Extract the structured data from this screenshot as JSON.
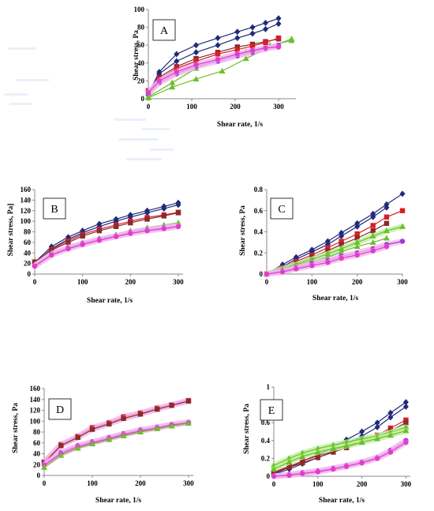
{
  "figure": {
    "colors": {
      "navy": "#1f2a7a",
      "red": "#d4202b",
      "brown": "#8c2a2a",
      "green": "#6cbf2a",
      "purple": "#9b3bd6",
      "magenta": "#e23cc9",
      "glow_pink": "#f3b6ef",
      "glow_blue": "#b8c6ff",
      "glow_green": "#bff0a0",
      "axis": "#8a8a8a"
    }
  },
  "chart_data": [
    {
      "id": "A",
      "type": "line",
      "label": "A",
      "xlabel": "Shear rate, 1/s",
      "ylabel": "Shear stress, Pa",
      "xlim": [
        0,
        340
      ],
      "ylim": [
        0,
        100
      ],
      "xticks": [
        0,
        100,
        200,
        300
      ],
      "yticks": [
        0,
        20,
        40,
        60,
        80,
        100
      ],
      "series": [
        {
          "color": "navy",
          "marker": "diamond",
          "x": [
            0,
            25,
            65,
            110,
            160,
            205,
            240,
            270,
            300
          ],
          "y": [
            5,
            30,
            50,
            60,
            68,
            75,
            80,
            85,
            90
          ]
        },
        {
          "color": "navy",
          "marker": "diamond",
          "x": [
            0,
            25,
            65,
            110,
            160,
            205,
            240,
            270,
            300
          ],
          "y": [
            4,
            28,
            42,
            52,
            60,
            68,
            73,
            78,
            84
          ]
        },
        {
          "color": "brown",
          "marker": "square",
          "x": [
            0,
            25,
            65,
            110,
            160,
            205,
            240,
            270,
            300
          ],
          "y": [
            8,
            24,
            36,
            45,
            52,
            58,
            61,
            64,
            67
          ]
        },
        {
          "color": "red",
          "marker": "square",
          "x": [
            0,
            25,
            65,
            110,
            160,
            205,
            240,
            270,
            300
          ],
          "y": [
            9,
            22,
            34,
            42,
            50,
            55,
            59,
            63,
            68
          ]
        },
        {
          "color": "green",
          "marker": "triangle",
          "x": [
            0,
            55,
            110,
            170,
            225,
            280,
            330
          ],
          "y": [
            1,
            13,
            22,
            31,
            45,
            58,
            67
          ]
        },
        {
          "color": "green",
          "marker": "triangle",
          "x": [
            0,
            55,
            110,
            170,
            225,
            280,
            330
          ],
          "y": [
            2,
            18,
            34,
            45,
            53,
            60,
            65
          ]
        },
        {
          "color": "purple",
          "marker": "circle",
          "x": [
            0,
            25,
            65,
            110,
            160,
            205,
            240,
            270,
            300
          ],
          "y": [
            6,
            18,
            28,
            36,
            42,
            48,
            52,
            56,
            60
          ],
          "glow": "glow_pink"
        },
        {
          "color": "magenta",
          "marker": "circle",
          "x": [
            0,
            25,
            65,
            110,
            160,
            205,
            240,
            270,
            300
          ],
          "y": [
            7,
            20,
            30,
            38,
            44,
            50,
            54,
            57,
            58
          ],
          "glow": "glow_pink"
        }
      ]
    },
    {
      "id": "B",
      "type": "line",
      "label": "B",
      "xlabel": "Shear rate, 1/s",
      "ylabel": "Shear stress, Pa]",
      "xlim": [
        0,
        310
      ],
      "ylim": [
        0,
        160
      ],
      "xticks": [
        0,
        100,
        200,
        300
      ],
      "yticks": [
        0,
        20,
        40,
        60,
        80,
        100,
        120,
        140,
        160
      ],
      "series": [
        {
          "color": "navy",
          "marker": "diamond",
          "x": [
            0,
            35,
            70,
            100,
            135,
            170,
            200,
            235,
            270,
            300
          ],
          "y": [
            22,
            52,
            70,
            82,
            95,
            104,
            112,
            120,
            128,
            135
          ]
        },
        {
          "color": "navy",
          "marker": "diamond",
          "x": [
            0,
            35,
            70,
            100,
            135,
            170,
            200,
            235,
            270,
            300
          ],
          "y": [
            20,
            48,
            66,
            78,
            90,
            100,
            108,
            116,
            124,
            131
          ]
        },
        {
          "color": "red",
          "marker": "square",
          "x": [
            0,
            35,
            70,
            100,
            135,
            170,
            200,
            235,
            270,
            300
          ],
          "y": [
            21,
            47,
            63,
            75,
            85,
            93,
            100,
            107,
            112,
            117
          ]
        },
        {
          "color": "brown",
          "marker": "square",
          "x": [
            0,
            35,
            70,
            100,
            135,
            170,
            200,
            235,
            270,
            300
          ],
          "y": [
            23,
            45,
            60,
            72,
            82,
            90,
            97,
            104,
            110,
            116
          ]
        },
        {
          "color": "green",
          "marker": "triangle",
          "x": [
            0,
            35,
            70,
            100,
            135,
            170,
            200,
            235,
            270,
            300
          ],
          "y": [
            18,
            40,
            52,
            60,
            68,
            75,
            82,
            88,
            93,
            97
          ]
        },
        {
          "color": "purple",
          "marker": "circle",
          "x": [
            0,
            35,
            70,
            100,
            135,
            170,
            200,
            235,
            270,
            300
          ],
          "y": [
            16,
            38,
            50,
            58,
            66,
            72,
            79,
            84,
            88,
            91
          ],
          "glow": "glow_pink"
        },
        {
          "color": "magenta",
          "marker": "circle",
          "x": [
            0,
            35,
            70,
            100,
            135,
            170,
            200,
            235,
            270,
            300
          ],
          "y": [
            15,
            36,
            48,
            56,
            64,
            71,
            77,
            82,
            86,
            90
          ],
          "glow": "glow_pink"
        }
      ]
    },
    {
      "id": "C",
      "type": "line",
      "label": "C",
      "xlabel": "Shear rate, 1/s",
      "ylabel": "Shear  stress, Pa",
      "xlim": [
        0,
        300
      ],
      "ylim": [
        0,
        0.8
      ],
      "xticks": [
        0,
        100,
        200,
        300
      ],
      "yticks": [
        0,
        0.2,
        0.4,
        0.6,
        0.8
      ],
      "series": [
        {
          "color": "navy",
          "marker": "diamond",
          "x": [
            0,
            35,
            65,
            100,
            135,
            165,
            200,
            235,
            265,
            300
          ],
          "y": [
            0.0,
            0.09,
            0.16,
            0.23,
            0.31,
            0.39,
            0.48,
            0.57,
            0.66,
            0.76
          ]
        },
        {
          "color": "navy",
          "marker": "diamond",
          "x": [
            0,
            35,
            65,
            100,
            135,
            165,
            200,
            235,
            265
          ],
          "y": [
            0.0,
            0.07,
            0.14,
            0.21,
            0.28,
            0.36,
            0.45,
            0.54,
            0.63
          ]
        },
        {
          "color": "red",
          "marker": "square",
          "x": [
            0,
            35,
            65,
            100,
            135,
            165,
            200,
            235,
            265,
            300
          ],
          "y": [
            0.0,
            0.06,
            0.12,
            0.18,
            0.25,
            0.31,
            0.38,
            0.46,
            0.54,
            0.6
          ]
        },
        {
          "color": "brown",
          "marker": "square",
          "x": [
            0,
            35,
            65,
            100,
            135,
            165,
            200,
            235,
            265
          ],
          "y": [
            0.0,
            0.05,
            0.1,
            0.16,
            0.22,
            0.28,
            0.34,
            0.41,
            0.48
          ]
        },
        {
          "color": "green",
          "marker": "triangle",
          "x": [
            0,
            35,
            65,
            100,
            135,
            165,
            200,
            235,
            265,
            300
          ],
          "y": [
            0.0,
            0.05,
            0.09,
            0.14,
            0.19,
            0.24,
            0.3,
            0.36,
            0.41,
            0.45
          ],
          "glow": "glow_green"
        },
        {
          "color": "green",
          "marker": "triangle",
          "x": [
            0,
            35,
            65,
            100,
            135,
            165,
            200,
            235,
            265
          ],
          "y": [
            0.0,
            0.04,
            0.08,
            0.12,
            0.16,
            0.21,
            0.26,
            0.3,
            0.34
          ]
        },
        {
          "color": "purple",
          "marker": "circle",
          "x": [
            0,
            35,
            65,
            100,
            135,
            165,
            200,
            235,
            265,
            300
          ],
          "y": [
            0.0,
            0.03,
            0.06,
            0.1,
            0.13,
            0.17,
            0.2,
            0.24,
            0.28,
            0.31
          ],
          "glow": "glow_pink"
        },
        {
          "color": "magenta",
          "marker": "circle",
          "x": [
            0,
            35,
            65,
            100,
            135,
            165,
            200,
            235,
            265
          ],
          "y": [
            0.0,
            0.02,
            0.05,
            0.08,
            0.11,
            0.15,
            0.18,
            0.22,
            0.26
          ],
          "glow": "glow_pink"
        }
      ]
    },
    {
      "id": "D",
      "type": "line",
      "label": "D",
      "xlabel": "Shear rate, 1/s",
      "ylabel": "Shear  stress, Pa",
      "xlim": [
        0,
        310
      ],
      "ylim": [
        0,
        160
      ],
      "xticks": [
        0,
        100,
        200,
        300
      ],
      "yticks": [
        0,
        20,
        40,
        60,
        80,
        100,
        120,
        140,
        160
      ],
      "series": [
        {
          "color": "red",
          "marker": "square",
          "x": [
            0,
            35,
            70,
            100,
            135,
            165,
            200,
            235,
            265,
            300
          ],
          "y": [
            25,
            57,
            72,
            88,
            97,
            108,
            115,
            124,
            130,
            138
          ],
          "glow": "glow_pink"
        },
        {
          "color": "brown",
          "marker": "square",
          "x": [
            0,
            35,
            70,
            100,
            135,
            165,
            200,
            235,
            265,
            300
          ],
          "y": [
            23,
            55,
            70,
            85,
            95,
            105,
            113,
            122,
            129,
            137
          ],
          "glow": "glow_pink"
        },
        {
          "color": "purple",
          "marker": "circle",
          "x": [
            0,
            35,
            70,
            100,
            135,
            165,
            200,
            235,
            265,
            300
          ],
          "y": [
            20,
            42,
            55,
            62,
            70,
            77,
            84,
            89,
            94,
            98
          ],
          "glow": "glow_pink"
        },
        {
          "color": "magenta",
          "marker": "circle",
          "x": [
            0,
            35,
            70,
            100,
            135,
            165,
            200,
            235,
            265,
            300
          ],
          "y": [
            19,
            40,
            53,
            60,
            68,
            75,
            82,
            87,
            93,
            97
          ],
          "glow": "glow_pink"
        },
        {
          "color": "green",
          "marker": "triangle",
          "x": [
            0,
            35,
            70,
            100,
            135,
            165,
            200,
            235,
            265,
            300
          ],
          "y": [
            15,
            37,
            50,
            58,
            66,
            73,
            80,
            86,
            91,
            96
          ]
        }
      ]
    },
    {
      "id": "E",
      "type": "line",
      "label": "E",
      "xlabel": "Shear rate, 1/s",
      "ylabel": "Shear  stress, Pa",
      "xlim": [
        0,
        310
      ],
      "ylim": [
        0,
        1.0
      ],
      "xticks": [
        0,
        100,
        200,
        300
      ],
      "yticks": [
        0,
        0.2,
        0.4,
        0.6,
        0.8,
        1.0
      ],
      "series": [
        {
          "color": "navy",
          "marker": "diamond",
          "x": [
            0,
            35,
            65,
            100,
            135,
            165,
            200,
            235,
            265,
            300
          ],
          "y": [
            0.03,
            0.1,
            0.17,
            0.24,
            0.32,
            0.41,
            0.5,
            0.6,
            0.71,
            0.83
          ]
        },
        {
          "color": "navy",
          "marker": "diamond",
          "x": [
            0,
            35,
            65,
            100,
            135,
            165,
            200,
            235,
            265,
            300
          ],
          "y": [
            0.02,
            0.08,
            0.14,
            0.21,
            0.28,
            0.36,
            0.45,
            0.55,
            0.66,
            0.78
          ]
        },
        {
          "color": "red",
          "marker": "square",
          "x": [
            0,
            35,
            65,
            100,
            135,
            165,
            200,
            235,
            265,
            300
          ],
          "y": [
            0.05,
            0.11,
            0.17,
            0.23,
            0.29,
            0.34,
            0.4,
            0.46,
            0.54,
            0.63
          ]
        },
        {
          "color": "brown",
          "marker": "square",
          "x": [
            0,
            35,
            65,
            100,
            135,
            165,
            200,
            235,
            265,
            300
          ],
          "y": [
            0.04,
            0.1,
            0.15,
            0.21,
            0.27,
            0.32,
            0.38,
            0.44,
            0.51,
            0.6
          ]
        },
        {
          "color": "green",
          "marker": "triangle",
          "x": [
            0,
            35,
            65,
            100,
            135,
            165,
            200,
            235,
            265,
            300
          ],
          "y": [
            0.12,
            0.2,
            0.26,
            0.31,
            0.35,
            0.38,
            0.42,
            0.45,
            0.49,
            0.55
          ],
          "glow": "glow_green"
        },
        {
          "color": "green",
          "marker": "triangle",
          "x": [
            0,
            35,
            65,
            100,
            135,
            165,
            200,
            235,
            265,
            300
          ],
          "y": [
            0.08,
            0.16,
            0.22,
            0.27,
            0.31,
            0.34,
            0.38,
            0.42,
            0.46,
            0.51
          ],
          "glow": "glow_green"
        },
        {
          "color": "purple",
          "marker": "circle",
          "x": [
            0,
            35,
            65,
            100,
            135,
            165,
            200,
            235,
            265,
            300
          ],
          "y": [
            0.0,
            0.02,
            0.04,
            0.06,
            0.09,
            0.12,
            0.16,
            0.21,
            0.29,
            0.4
          ],
          "glow": "glow_pink"
        },
        {
          "color": "magenta",
          "marker": "circle",
          "x": [
            0,
            35,
            65,
            100,
            135,
            165,
            200,
            235,
            265,
            300
          ],
          "y": [
            0.0,
            0.01,
            0.03,
            0.05,
            0.08,
            0.11,
            0.15,
            0.2,
            0.27,
            0.38
          ],
          "glow": "glow_pink"
        }
      ]
    }
  ]
}
